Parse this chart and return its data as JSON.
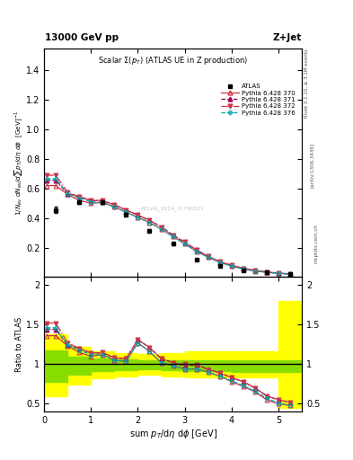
{
  "title_top": "13000 GeV pp",
  "title_right": "Z+Jet",
  "plot_title": "Scalar $\\Sigma(p_T)$ (ATLAS UE in Z production)",
  "xlabel": "sum $p_T$/d$\\eta$ d$\\phi$ [GeV]",
  "ylabel_main": "$1/N_{ev}$ $dN_{ev}/d\\sum p_T/d\\eta$ $d\\phi$  [GeV]$^{-1}$",
  "ylabel_ratio": "Ratio to ATLAS",
  "rivet_text": "Rivet 3.1.10, ≥ 3.1M events",
  "arxiv_text": "[arXiv:1306.3436]",
  "mcplots_text": "mcplots.cern.ch",
  "atlas_watermark": "ATLAS_2014_I1736531",
  "xlim": [
    0,
    5.5
  ],
  "ylim_main": [
    0,
    1.55
  ],
  "ylim_ratio": [
    0.4,
    2.1
  ],
  "yticks_main": [
    0.2,
    0.4,
    0.6,
    0.8,
    1.0,
    1.2,
    1.4
  ],
  "yticks_ratio": [
    0.5,
    1.0,
    1.5,
    2.0
  ],
  "xticks": [
    0,
    1,
    2,
    3,
    4,
    5
  ],
  "atlas_x": [
    0.25,
    0.75,
    1.25,
    1.75,
    2.25,
    2.75,
    3.25,
    3.75,
    4.25,
    4.75,
    5.25
  ],
  "atlas_y": [
    0.455,
    0.505,
    0.505,
    0.425,
    0.315,
    0.225,
    0.12,
    0.075,
    0.048,
    0.032,
    0.022
  ],
  "atlas_yerr": [
    0.02,
    0.01,
    0.01,
    0.01,
    0.01,
    0.008,
    0.005,
    0.004,
    0.003,
    0.002,
    0.002
  ],
  "p370_x": [
    0.05,
    0.25,
    0.5,
    0.75,
    1.0,
    1.25,
    1.5,
    1.75,
    2.0,
    2.25,
    2.5,
    2.75,
    3.0,
    3.25,
    3.5,
    3.75,
    4.0,
    4.25,
    4.5,
    4.75,
    5.0,
    5.25
  ],
  "p370_y": [
    0.62,
    0.62,
    0.56,
    0.52,
    0.5,
    0.505,
    0.475,
    0.44,
    0.405,
    0.37,
    0.325,
    0.275,
    0.225,
    0.175,
    0.135,
    0.1,
    0.075,
    0.055,
    0.042,
    0.032,
    0.025,
    0.02
  ],
  "p371_x": [
    0.05,
    0.25,
    0.5,
    0.75,
    1.0,
    1.25,
    1.5,
    1.75,
    2.0,
    2.25,
    2.5,
    2.75,
    3.0,
    3.25,
    3.5,
    3.75,
    4.0,
    4.25,
    4.5,
    4.75,
    5.0,
    5.25
  ],
  "p371_y": [
    0.655,
    0.655,
    0.565,
    0.545,
    0.52,
    0.515,
    0.49,
    0.455,
    0.42,
    0.385,
    0.34,
    0.285,
    0.235,
    0.185,
    0.14,
    0.105,
    0.08,
    0.06,
    0.045,
    0.035,
    0.027,
    0.022
  ],
  "p372_x": [
    0.05,
    0.25,
    0.5,
    0.75,
    1.0,
    1.25,
    1.5,
    1.75,
    2.0,
    2.25,
    2.5,
    2.75,
    3.0,
    3.25,
    3.5,
    3.75,
    4.0,
    4.25,
    4.5,
    4.75,
    5.0,
    5.25
  ],
  "p372_y": [
    0.69,
    0.69,
    0.575,
    0.545,
    0.52,
    0.52,
    0.49,
    0.455,
    0.42,
    0.385,
    0.34,
    0.285,
    0.24,
    0.185,
    0.14,
    0.105,
    0.08,
    0.06,
    0.045,
    0.035,
    0.027,
    0.022
  ],
  "p376_x": [
    0.05,
    0.25,
    0.5,
    0.75,
    1.0,
    1.25,
    1.5,
    1.75,
    2.0,
    2.25,
    2.5,
    2.75,
    3.0,
    3.25,
    3.5,
    3.75,
    4.0,
    4.25,
    4.5,
    4.75,
    5.0,
    5.25
  ],
  "p376_y": [
    0.665,
    0.665,
    0.565,
    0.535,
    0.51,
    0.505,
    0.475,
    0.44,
    0.405,
    0.37,
    0.325,
    0.275,
    0.225,
    0.175,
    0.135,
    0.1,
    0.075,
    0.055,
    0.042,
    0.032,
    0.025,
    0.02
  ],
  "ratio370_y": [
    1.36,
    1.36,
    1.23,
    1.15,
    1.1,
    1.12,
    1.05,
    1.035,
    1.27,
    1.16,
    1.02,
    0.98,
    0.94,
    0.94,
    0.9,
    0.85,
    0.78,
    0.72,
    0.65,
    0.55,
    0.5,
    0.48
  ],
  "ratio371_y": [
    1.44,
    1.44,
    1.24,
    1.2,
    1.14,
    1.14,
    1.08,
    1.07,
    1.31,
    1.21,
    1.07,
    1.02,
    0.98,
    0.99,
    0.94,
    0.89,
    0.83,
    0.78,
    0.7,
    0.6,
    0.55,
    0.52
  ],
  "ratio372_y": [
    1.52,
    1.52,
    1.27,
    1.2,
    1.14,
    1.15,
    1.08,
    1.07,
    1.31,
    1.21,
    1.07,
    1.02,
    1.0,
    0.99,
    0.93,
    0.89,
    0.83,
    0.78,
    0.7,
    0.6,
    0.55,
    0.52
  ],
  "ratio376_y": [
    1.46,
    1.46,
    1.24,
    1.18,
    1.12,
    1.12,
    1.05,
    1.035,
    1.27,
    1.16,
    1.02,
    0.98,
    0.94,
    0.94,
    0.9,
    0.85,
    0.79,
    0.73,
    0.66,
    0.57,
    0.51,
    0.48
  ],
  "color_370": "#cc3344",
  "color_371": "#990055",
  "color_372": "#cc3344",
  "color_376": "#00aaaa",
  "band_x": [
    0.0,
    0.5,
    1.0,
    1.5,
    2.0,
    2.5,
    3.0,
    3.5,
    4.0,
    4.5,
    5.0,
    5.5
  ],
  "band_green_low": [
    0.78,
    0.87,
    0.91,
    0.93,
    0.94,
    0.93,
    0.91,
    0.91,
    0.9,
    0.9,
    0.9,
    0.9
  ],
  "band_green_high": [
    1.18,
    1.1,
    1.07,
    1.06,
    1.05,
    1.05,
    1.05,
    1.05,
    1.05,
    1.05,
    1.05,
    1.05
  ],
  "band_yellow_low": [
    0.6,
    0.74,
    0.82,
    0.85,
    0.87,
    0.85,
    0.83,
    0.83,
    0.83,
    0.83,
    0.45,
    0.45
  ],
  "band_yellow_high": [
    1.38,
    1.22,
    1.16,
    1.14,
    1.13,
    1.14,
    1.16,
    1.16,
    1.16,
    1.16,
    1.8,
    1.8
  ]
}
